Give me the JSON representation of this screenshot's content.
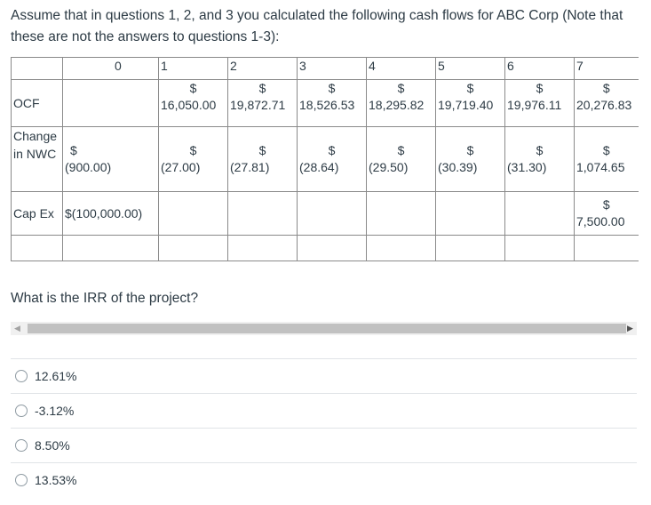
{
  "intro": "Assume that in questions 1, 2, and 3 you calculated the following cash flows for ABC Corp (Note that these are not the answers to questions 1-3):",
  "table": {
    "header": [
      "",
      "0",
      "1",
      "2",
      "3",
      "4",
      "5",
      "6",
      "7"
    ],
    "ocf": {
      "label": "OCF",
      "values": [
        "16,050.00",
        "19,872.71",
        "18,526.53",
        "18,295.82",
        "19,719.40",
        "19,976.11",
        "20,276.83"
      ]
    },
    "nwc": {
      "label": "Change in NWC",
      "values": [
        "(900.00)",
        "(27.00)",
        "(27.81)",
        "(28.64)",
        "(29.50)",
        "(30.39)",
        "(31.30)",
        "1,074.65"
      ]
    },
    "capex": {
      "label": "Cap Ex",
      "value0": "$(100,000.00)",
      "value7": "7,500.00"
    },
    "currency": "$"
  },
  "question": "What is the IRR of the project?",
  "choices": [
    "12.61%",
    "-3.12%",
    "8.50%",
    "13.53%"
  ]
}
